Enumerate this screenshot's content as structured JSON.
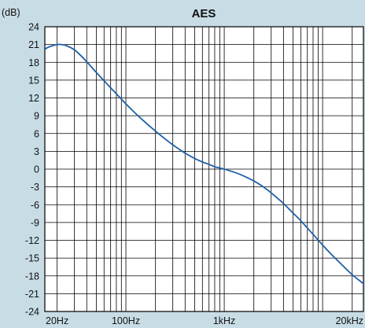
{
  "chart_data": {
    "type": "line",
    "title": "AES",
    "ylabel": "(dB)",
    "xlabel": "",
    "x_scale": "log",
    "xlim": [
      15,
      26000
    ],
    "ylim": [
      -24,
      24
    ],
    "y_ticks": [
      24,
      21,
      18,
      15,
      12,
      9,
      6,
      3,
      0,
      -3,
      -6,
      -9,
      -12,
      -15,
      -18,
      -21,
      -24
    ],
    "y_tick_labels": [
      "24",
      "21",
      "18",
      "15",
      "12",
      "9",
      "6",
      "3",
      "0",
      "-3",
      "-6",
      "-9",
      "-12",
      "-15",
      "-18",
      "-21",
      "-24"
    ],
    "x_tick_values": [
      20,
      100,
      1000,
      20000
    ],
    "x_tick_labels": [
      "20Hz",
      "100Hz",
      "1kHz",
      "20kHz"
    ],
    "x_gridlines": [
      20,
      30,
      40,
      50,
      60,
      70,
      80,
      90,
      100,
      200,
      300,
      400,
      500,
      600,
      700,
      800,
      900,
      1000,
      2000,
      3000,
      4000,
      5000,
      6000,
      7000,
      8000,
      9000,
      10000,
      20000
    ],
    "grid": true,
    "legend": "none",
    "series": [
      {
        "color": "#1f5fa8",
        "x": [
          15,
          16,
          18,
          20,
          22,
          25,
          30,
          35,
          40,
          50,
          60,
          70,
          80,
          100,
          120,
          150,
          200,
          250,
          300,
          400,
          500,
          600,
          700,
          800,
          900,
          1000,
          1200,
          1500,
          2000,
          2500,
          3000,
          4000,
          5000,
          6000,
          8000,
          10000,
          12000,
          15000,
          20000,
          26000
        ],
        "y": [
          20.2,
          20.5,
          20.8,
          21.0,
          21.0,
          20.8,
          20.1,
          19.1,
          18.1,
          16.3,
          14.9,
          13.7,
          12.7,
          11.0,
          9.7,
          8.2,
          6.4,
          5.1,
          4.1,
          2.7,
          1.8,
          1.2,
          0.8,
          0.4,
          0.2,
          0.0,
          -0.4,
          -1.0,
          -2.0,
          -3.0,
          -4.0,
          -5.8,
          -7.4,
          -8.7,
          -11.0,
          -12.8,
          -14.2,
          -15.8,
          -17.8,
          -19.3
        ]
      }
    ]
  }
}
